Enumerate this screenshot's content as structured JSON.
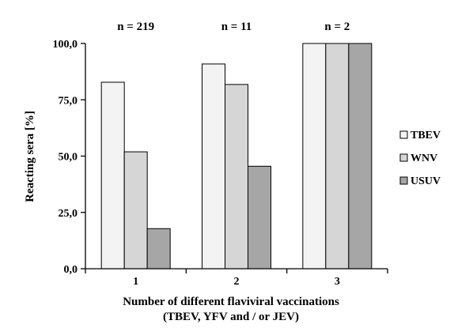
{
  "chart_data": {
    "type": "bar",
    "categories": [
      "1",
      "2",
      "3"
    ],
    "group_labels": [
      "n = 219",
      "n = 11",
      "n = 2"
    ],
    "series": [
      {
        "name": "TBEV",
        "values": [
          82.8,
          90.9,
          100.0
        ],
        "color": "#f3f3f3"
      },
      {
        "name": "WNV",
        "values": [
          51.9,
          81.8,
          100.0
        ],
        "color": "#d6d6d6"
      },
      {
        "name": "USUV",
        "values": [
          17.8,
          45.5,
          100.0
        ],
        "color": "#a6a6a6"
      }
    ],
    "ylabel": "Reacting sera [%]",
    "xlabel": "Number of different flaviviral vaccinations",
    "xlabel_line2": "(TBEV, YFV and / or JEV)",
    "ylim": [
      0,
      100
    ],
    "yticks": [
      0,
      25,
      50,
      75,
      100
    ],
    "ytick_labels": [
      "0,0",
      "25,0",
      "50,0",
      "75,0",
      "100,0"
    ],
    "grid": false,
    "legend_position": "right"
  }
}
